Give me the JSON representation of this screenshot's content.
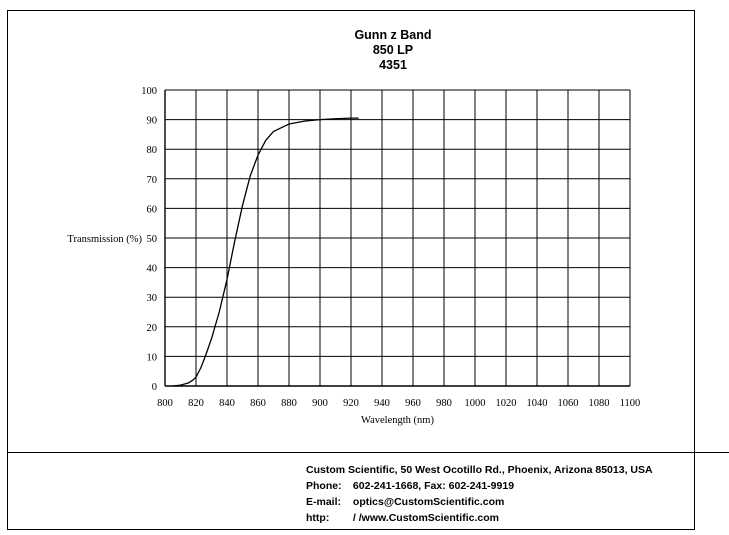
{
  "title": {
    "line1": "Gunn z Band",
    "line2": "850 LP",
    "line3": "4351"
  },
  "footer": {
    "address": "Custom Scientific, 50 West Ocotillo Rd., Phoenix, Arizona 85013, USA",
    "phone_label": "Phone:",
    "phone_value": "602-241-1668, Fax:  602-241-9919",
    "email_label": "E-mail:",
    "email_value": "optics@CustomScientific.com",
    "http_label": "http:",
    "http_value": "/ /www.CustomScientific.com"
  },
  "chart_data": {
    "type": "line",
    "title": "Gunn z Band",
    "xlabel": "Wavelength (nm)",
    "ylabel": "Transmission (%)",
    "xlim": [
      800,
      1100
    ],
    "ylim": [
      0,
      100
    ],
    "grid": true,
    "x_ticks": [
      "800",
      "820",
      "840",
      "860",
      "880",
      "900",
      "920",
      "940",
      "960",
      "980",
      "1000",
      "1020",
      "1040",
      "1060",
      "1080",
      "1100"
    ],
    "y_ticks": [
      "0",
      "10",
      "20",
      "30",
      "40",
      "50",
      "60",
      "70",
      "80",
      "90",
      "100"
    ],
    "series": [
      {
        "x": [
          805,
          810,
          815,
          818,
          820,
          823,
          826,
          830,
          835,
          840,
          845,
          850,
          855,
          860,
          865,
          870,
          880,
          890,
          900,
          910,
          920,
          925
        ],
        "values": [
          0,
          0.3,
          1,
          2,
          3,
          6,
          10,
          16,
          25,
          36,
          49,
          61,
          71,
          78,
          83,
          86,
          88.5,
          89.5,
          90,
          90.3,
          90.5,
          90.5
        ]
      }
    ]
  }
}
